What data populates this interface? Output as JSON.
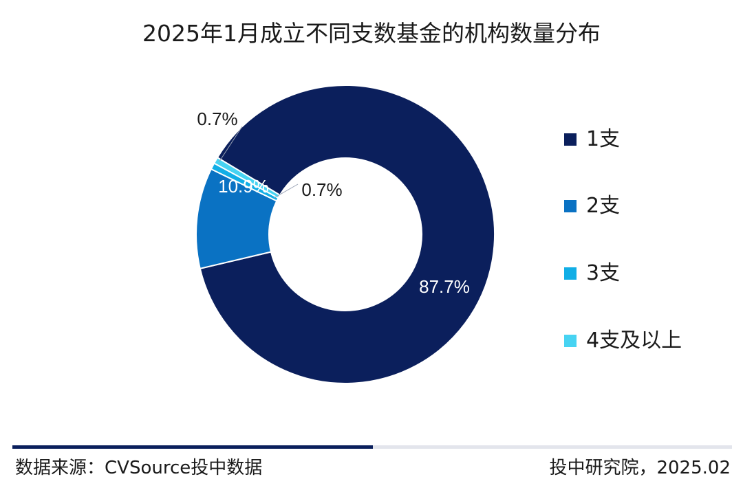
{
  "chart_data": {
    "type": "pie",
    "title": "2025年1月成立不同支数基金的机构数量分布",
    "categories": [
      "1支",
      "2支",
      "3支",
      "4支及以上"
    ],
    "values": [
      87.7,
      10.9,
      0.7,
      0.7
    ],
    "data_labels": [
      "87.7%",
      "10.9%",
      "0.7%",
      "0.7%"
    ],
    "colors": [
      "#0b1f5c",
      "#0a72c3",
      "#11aee6",
      "#47d3f2"
    ],
    "legend_position": "right",
    "donut": true
  },
  "footer": {
    "source": "数据来源：CVSource投中数据",
    "credit": "投中研究院，2025.02"
  }
}
